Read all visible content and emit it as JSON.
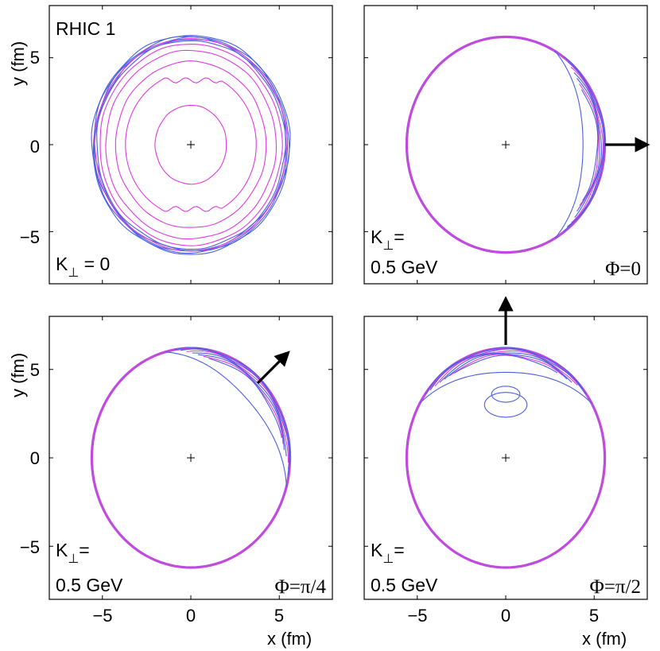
{
  "chart_data": [
    {
      "type": "contour",
      "id": "top-left",
      "label": "RHIC 1",
      "kperp_label": "K",
      "kperp_sub": "⊥",
      "kperp_value": " = 0",
      "phi_label": "",
      "xlim": [
        -8,
        8
      ],
      "ylim": [
        -8,
        8
      ],
      "xticks": [
        "−5",
        "0",
        "5"
      ],
      "yticks": [
        "5",
        "0",
        "−5"
      ],
      "xlabel": "x (fm)",
      "ylabel": "y (fm)",
      "contours": {
        "mode": "nested",
        "outer_rx": 5.6,
        "outer_ry": 6.3,
        "blue_levels": 5,
        "magenta_scales": [
          0.97,
          0.92,
          0.86,
          0.76,
          0.66,
          0.36
        ]
      }
    },
    {
      "type": "contour",
      "id": "top-right",
      "label": "",
      "kperp_label": "K",
      "kperp_sub": "⊥",
      "kperp_value": "=",
      "kperp_line2": "0.5 GeV",
      "phi_label": "Φ=0",
      "phi_deg": 0,
      "xlim": [
        -8,
        8
      ],
      "ylim": [
        -8,
        8
      ],
      "xticks": [
        "−5",
        "0",
        "5"
      ],
      "yticks": [
        "5",
        "0",
        "−5"
      ],
      "xlabel": "x (fm)",
      "ylabel": "y (fm)",
      "contours": {
        "mode": "edge",
        "outer_rx": 5.6,
        "outer_ry": 6.2
      }
    },
    {
      "type": "contour",
      "id": "bottom-left",
      "label": "",
      "kperp_label": "K",
      "kperp_sub": "⊥",
      "kperp_value": "=",
      "kperp_line2": "0.5 GeV",
      "phi_label": "Φ=π/4",
      "phi_deg": 45,
      "xlim": [
        -8,
        8
      ],
      "ylim": [
        -8,
        8
      ],
      "xticks": [
        "−5",
        "0",
        "5"
      ],
      "yticks": [
        "5",
        "0",
        "−5"
      ],
      "xlabel": "x (fm)",
      "ylabel": "y (fm)",
      "contours": {
        "mode": "edge",
        "outer_rx": 5.6,
        "outer_ry": 6.2
      }
    },
    {
      "type": "contour",
      "id": "bottom-right",
      "label": "",
      "kperp_label": "K",
      "kperp_sub": "⊥",
      "kperp_value": "=",
      "kperp_line2": "0.5 GeV",
      "phi_label": "Φ=π/2",
      "phi_deg": 90,
      "xlim": [
        -8,
        8
      ],
      "ylim": [
        -8,
        8
      ],
      "xticks": [
        "−5",
        "0",
        "5"
      ],
      "yticks": [
        "5",
        "0",
        "−5"
      ],
      "xlabel": "x (fm)",
      "ylabel": "y (fm)",
      "contours": {
        "mode": "edge",
        "outer_rx": 5.6,
        "outer_ry": 6.2
      }
    }
  ],
  "colors": {
    "blue": "#4a5fe0",
    "magenta": "#e03adf",
    "outer_magenta": "#c04ae0",
    "axis": "#000000"
  }
}
